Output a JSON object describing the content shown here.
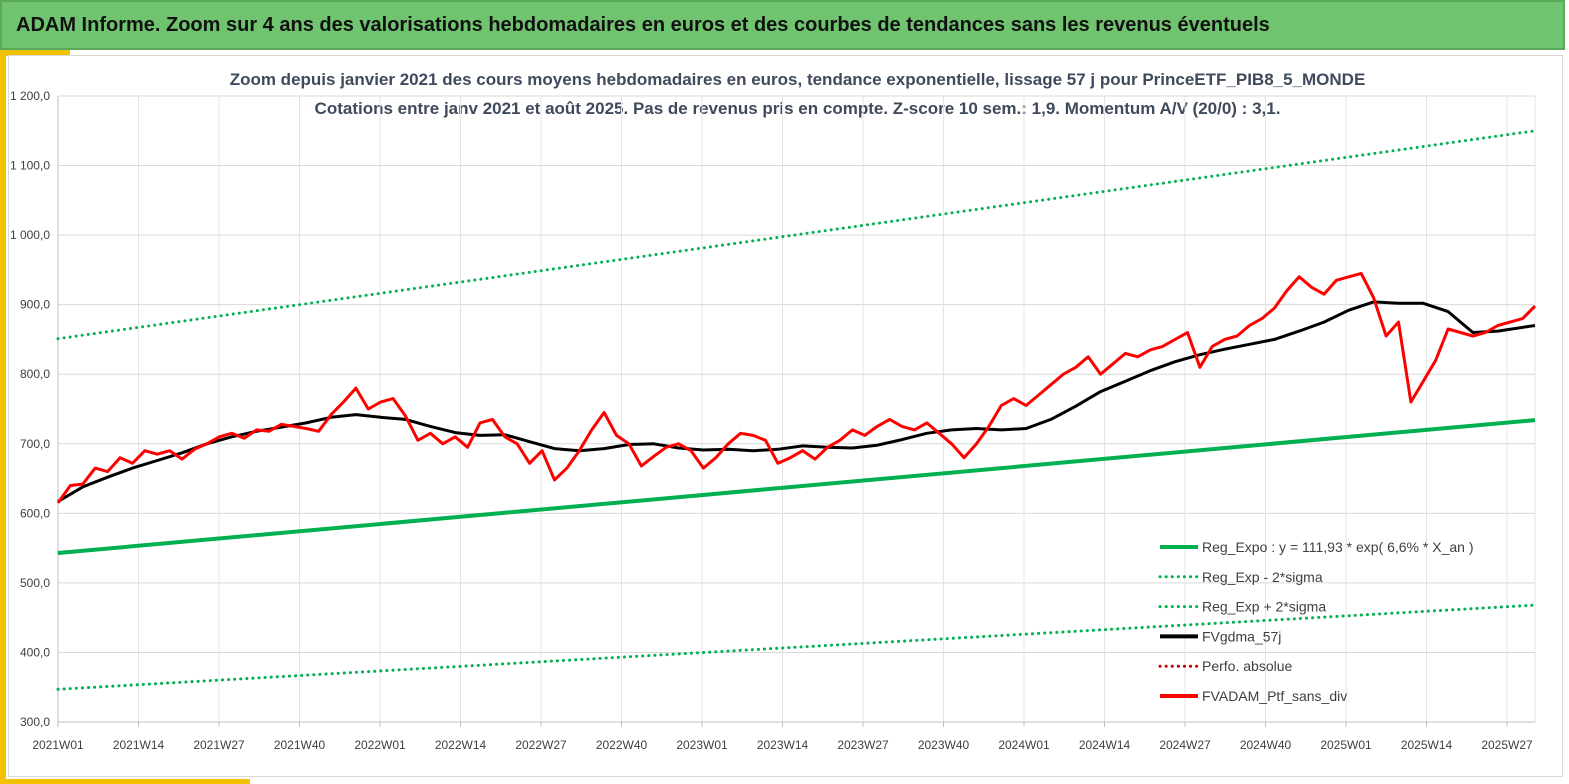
{
  "banner": {
    "title": "ADAM Informe. Zoom sur 4 ans des valorisations hebdomadaires en euros et des courbes de tendances sans les revenus éventuels"
  },
  "chart_data": {
    "type": "line",
    "title": "Zoom depuis janvier 2021 des cours moyens hebdomadaires  en euros, tendance exponentielle, lissage 57 j pour PrinceETF_PIB8_5_MONDE",
    "subtitle": "Cotations entre janv 2021 et août 2025. Pas de revenus pris en compte. Z-score 10 sem.: 1,9. Momentum A/V (20/0) : 3,1.",
    "xlabel": "",
    "ylabel": "",
    "ylim": [
      300,
      1200
    ],
    "y_ticks": [
      300,
      400,
      500,
      600,
      700,
      800,
      900,
      1000,
      1100,
      1200
    ],
    "y_tick_labels": [
      "300,0",
      "400,0",
      "500,0",
      "600,0",
      "700,0",
      "800,0",
      "900,0",
      "1 000,0",
      "1 100,0",
      "1 200,0"
    ],
    "x_tick_labels": [
      "2021W01",
      "2021W14",
      "2021W27",
      "2021W40",
      "2022W01",
      "2022W14",
      "2022W27",
      "2022W40",
      "2023W01",
      "2023W14",
      "2023W27",
      "2023W40",
      "2024W01",
      "2024W14",
      "2024W27",
      "2024W40",
      "2025W01",
      "2025W14",
      "2025W27"
    ],
    "x_range_weeks": [
      0,
      238
    ],
    "grid": true,
    "legend_position": "bottom-right",
    "series": [
      {
        "name": "Reg_Expo : y = 111,93 * exp( 6,6% *  X_an )",
        "color": "#00b050",
        "style": "solid",
        "x": [
          0,
          238
        ],
        "y": [
          543,
          734
        ]
      },
      {
        "name": "Reg_Exp - 2*sigma",
        "color": "#00b050",
        "style": "dotted",
        "x": [
          0,
          238
        ],
        "y": [
          347,
          468
        ]
      },
      {
        "name": "Reg_Exp + 2*sigma",
        "color": "#00b050",
        "style": "dotted",
        "x": [
          0,
          238
        ],
        "y": [
          851,
          1150
        ]
      },
      {
        "name": "FVgdma_57j",
        "color": "#000000",
        "style": "solid",
        "x": [
          0,
          4,
          8,
          12,
          16,
          20,
          24,
          28,
          32,
          36,
          40,
          44,
          48,
          52,
          56,
          60,
          64,
          68,
          72,
          76,
          80,
          84,
          88,
          92,
          96,
          100,
          104,
          108,
          112,
          116,
          120,
          124,
          128,
          132,
          136,
          140,
          144,
          148,
          152,
          156,
          160,
          164,
          168,
          172,
          176,
          180,
          184,
          188,
          192,
          196,
          200,
          204,
          208,
          212,
          216,
          220,
          224,
          228,
          232,
          238
        ],
        "y": [
          617,
          638,
          652,
          665,
          676,
          687,
          700,
          710,
          718,
          724,
          730,
          738,
          742,
          738,
          735,
          725,
          716,
          712,
          713,
          703,
          693,
          690,
          693,
          699,
          700,
          694,
          691,
          692,
          690,
          692,
          697,
          695,
          694,
          698,
          706,
          715,
          720,
          722,
          720,
          722,
          735,
          754,
          775,
          790,
          805,
          818,
          828,
          836,
          843,
          850,
          862,
          875,
          892,
          904,
          902,
          902,
          890,
          860,
          862,
          870
        ]
      },
      {
        "name": "Perfo. absolue",
        "color": "#c00000",
        "style": "dotted",
        "x": [],
        "y": []
      },
      {
        "name": "FVADAM_Ptf_sans_div",
        "color": "#ff0000",
        "style": "solid",
        "x": [
          0,
          2,
          4,
          6,
          8,
          10,
          12,
          14,
          16,
          18,
          20,
          22,
          24,
          26,
          28,
          30,
          32,
          34,
          36,
          38,
          40,
          42,
          44,
          46,
          48,
          50,
          52,
          54,
          56,
          58,
          60,
          62,
          64,
          66,
          68,
          70,
          72,
          74,
          76,
          78,
          80,
          82,
          84,
          86,
          88,
          90,
          92,
          94,
          96,
          98,
          100,
          102,
          104,
          106,
          108,
          110,
          112,
          114,
          116,
          118,
          120,
          122,
          124,
          126,
          128,
          130,
          132,
          134,
          136,
          138,
          140,
          142,
          144,
          146,
          148,
          150,
          152,
          154,
          156,
          158,
          160,
          162,
          164,
          166,
          168,
          170,
          172,
          174,
          176,
          178,
          180,
          182,
          184,
          186,
          188,
          190,
          192,
          194,
          196,
          198,
          200,
          202,
          204,
          206,
          208,
          210,
          212,
          214,
          216,
          218,
          220,
          222,
          224,
          226,
          228,
          230,
          232,
          234,
          236,
          238
        ],
        "y": [
          615,
          640,
          642,
          665,
          660,
          680,
          672,
          690,
          685,
          690,
          678,
          692,
          700,
          710,
          715,
          708,
          720,
          718,
          728,
          725,
          722,
          718,
          742,
          760,
          780,
          750,
          760,
          765,
          740,
          705,
          715,
          700,
          710,
          695,
          730,
          735,
          710,
          700,
          672,
          690,
          648,
          665,
          690,
          720,
          745,
          712,
          700,
          668,
          682,
          695,
          700,
          690,
          665,
          680,
          700,
          715,
          712,
          705,
          672,
          680,
          690,
          678,
          695,
          705,
          720,
          712,
          725,
          735,
          725,
          720,
          730,
          715,
          700,
          680,
          700,
          725,
          755,
          765,
          755,
          770,
          785,
          800,
          810,
          825,
          800,
          815,
          830,
          825,
          835,
          840,
          850,
          860,
          810,
          840,
          850,
          855,
          870,
          880,
          895,
          920,
          940,
          925,
          915,
          935,
          940,
          945,
          910,
          855,
          875,
          760,
          790,
          820,
          865,
          860,
          855,
          860,
          870,
          875,
          880,
          898
        ]
      }
    ]
  }
}
